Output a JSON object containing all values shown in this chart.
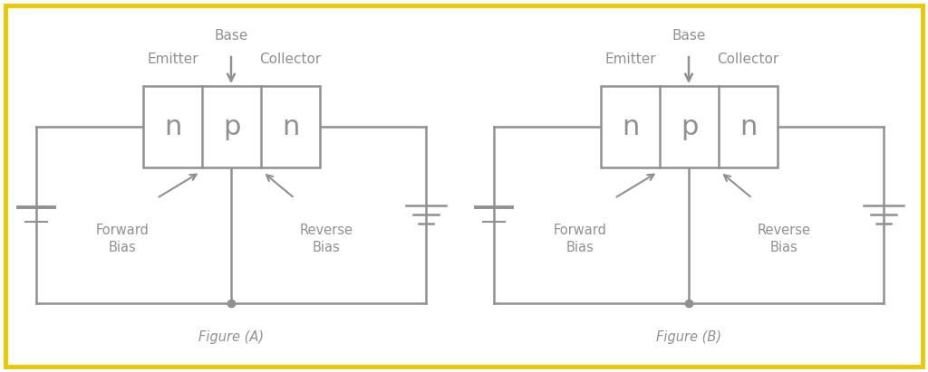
{
  "background_color": "#ffffff",
  "border_color": "#e8c800",
  "line_color": "#909090",
  "text_color": "#909090",
  "npn_letter_color": "#909090",
  "fig_A_label": "Figure (A)",
  "fig_B_label": "Figure (B)",
  "base_label": "Base",
  "emitter_label": "Emitter",
  "collector_label": "Collector",
  "forward_bias_label": "Forward\nBias",
  "reverse_bias_label": "Reverse\nBias",
  "n_label": "n",
  "p_label": "p",
  "figsize": [
    10.24,
    4.11
  ],
  "dpi": 100
}
